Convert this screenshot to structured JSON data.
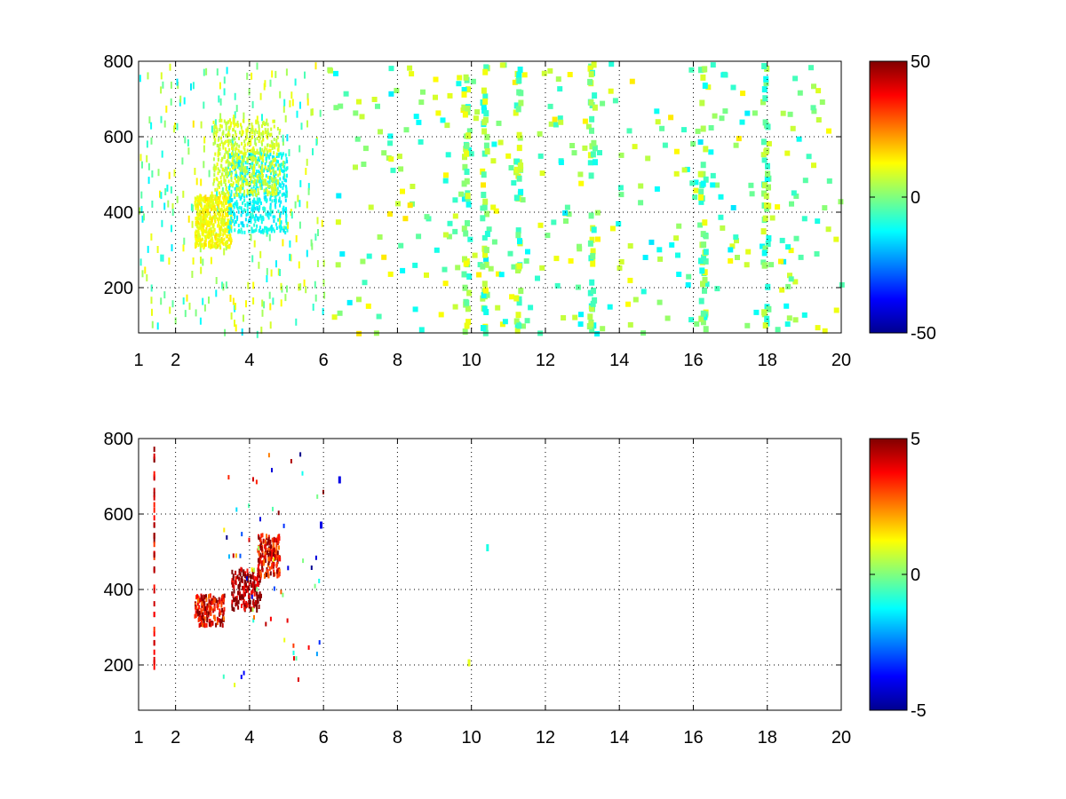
{
  "chart_data": [
    {
      "type": "heatmap",
      "title": "",
      "xlabel": "",
      "ylabel": "",
      "xlim": [
        1,
        20
      ],
      "ylim": [
        80,
        800
      ],
      "x_ticks": [
        1,
        2,
        4,
        6,
        8,
        10,
        12,
        14,
        16,
        18,
        20
      ],
      "y_ticks": [
        200,
        400,
        600,
        800
      ],
      "x_tick_labels": [
        "1",
        "2",
        "4",
        "6",
        "8",
        "10",
        "12",
        "14",
        "16",
        "18",
        "20"
      ],
      "y_tick_labels": [
        "200",
        "400",
        "600",
        "800"
      ],
      "grid": true,
      "colormap": "jet",
      "clim": [
        -50,
        50
      ],
      "colorbar_ticks": [
        50,
        0,
        -50
      ],
      "colorbar_tick_labels": [
        "50",
        "0",
        "-50"
      ],
      "description_of_values": "sparse field of values mostly near 0 (cyan to yellow, roughly -15 to +15); dense cluster around x 2.5–5, y 300–650 with a yellow band near x 2.5–3.5, y 300–450 and a cyan band along x 3.5–5, y 350–550; vertical streaks at x ≈ 9.8, 10.3, 11.2, 13.2, 16.2, 17.9",
      "clusters": [
        {
          "x": [
            2.5,
            3.5
          ],
          "y": [
            310,
            450
          ],
          "approx_value": 12
        },
        {
          "x": [
            3.4,
            5.0
          ],
          "y": [
            350,
            560
          ],
          "approx_value": -12
        },
        {
          "x": [
            3.0,
            4.8
          ],
          "y": [
            450,
            650
          ],
          "approx_value": 8
        }
      ],
      "streak_columns_x": [
        9.8,
        10.3,
        11.2,
        13.2,
        16.2,
        17.9
      ]
    },
    {
      "type": "heatmap",
      "title": "",
      "xlabel": "",
      "ylabel": "",
      "xlim": [
        1,
        20
      ],
      "ylim": [
        80,
        800
      ],
      "x_ticks": [
        1,
        2,
        4,
        6,
        8,
        10,
        12,
        14,
        16,
        18,
        20
      ],
      "y_ticks": [
        200,
        400,
        600,
        800
      ],
      "x_tick_labels": [
        "1",
        "2",
        "4",
        "6",
        "8",
        "10",
        "12",
        "14",
        "16",
        "18",
        "20"
      ],
      "y_tick_labels": [
        "200",
        "400",
        "600",
        "800"
      ],
      "grid": true,
      "colormap": "jet",
      "clim": [
        -5,
        5
      ],
      "colorbar_ticks": [
        5,
        0,
        -5
      ],
      "colorbar_tick_labels": [
        "5",
        "0",
        "-5"
      ],
      "description_of_values": "very sparse; high values (dark red, ~5) clustered around x 2.5–4.8, y 310–550; isolated low values (blue, ~-4) near x 5.9 y 580 and x 6.4 y 700; a vertical streak at x ≈ 1.4 from y 200 to 780",
      "clusters": [
        {
          "x": [
            2.5,
            3.3
          ],
          "y": [
            310,
            390
          ],
          "approx_value": 4
        },
        {
          "x": [
            3.5,
            4.3
          ],
          "y": [
            350,
            460
          ],
          "approx_value": 5
        },
        {
          "x": [
            4.2,
            4.8
          ],
          "y": [
            440,
            550
          ],
          "approx_value": 4
        }
      ],
      "isolated_points": [
        {
          "x": 5.9,
          "y": 580,
          "value": -4
        },
        {
          "x": 6.4,
          "y": 700,
          "value": -4
        },
        {
          "x": 10.4,
          "y": 520,
          "value": -1
        },
        {
          "x": 9.9,
          "y": 215,
          "value": 1
        }
      ]
    }
  ]
}
